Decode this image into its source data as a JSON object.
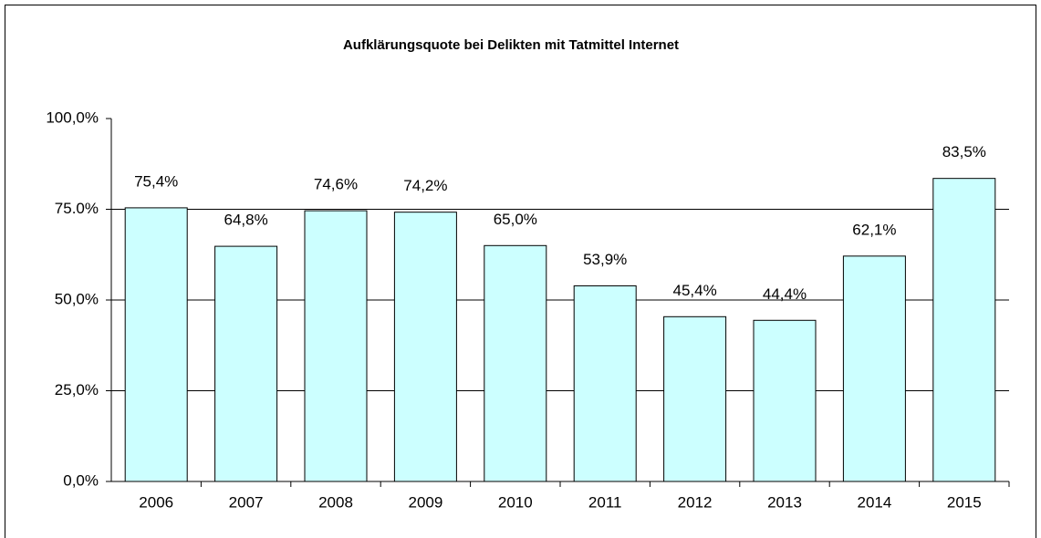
{
  "chart_data": {
    "type": "bar",
    "title": "Aufklärungsquote bei Delikten mit Tatmittel Internet",
    "categories": [
      "2006",
      "2007",
      "2008",
      "2009",
      "2010",
      "2011",
      "2012",
      "2013",
      "2014",
      "2015"
    ],
    "values": [
      75.4,
      64.8,
      74.6,
      74.2,
      65.0,
      53.9,
      45.4,
      44.4,
      62.1,
      83.5
    ],
    "value_labels": [
      "75,4%",
      "64,8%",
      "74,6%",
      "74,2%",
      "65,0%",
      "53,9%",
      "45,4%",
      "44,4%",
      "62,1%",
      "83,5%"
    ],
    "color": "#ccffff",
    "ylim": [
      0,
      100
    ],
    "yticks": [
      {
        "value": 0,
        "label": "0,0%"
      },
      {
        "value": 25,
        "label": "25,0%"
      },
      {
        "value": 50,
        "label": "50,0%"
      },
      {
        "value": 75,
        "label": "75.0%"
      },
      {
        "value": 100,
        "label": "100,0%"
      }
    ],
    "grid": true
  }
}
